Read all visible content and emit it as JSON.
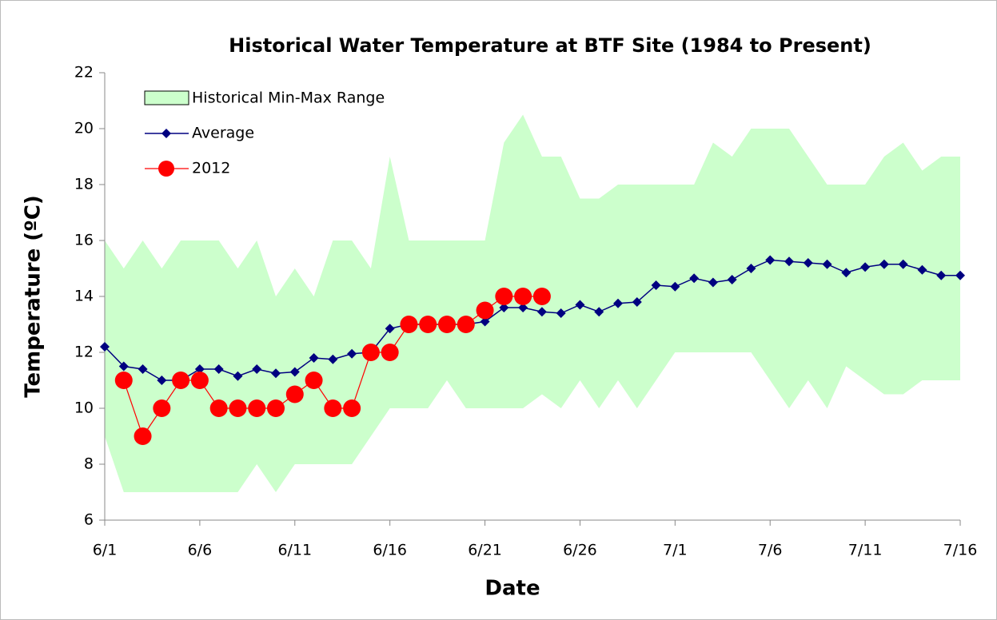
{
  "chart_data": {
    "type": "line",
    "title": "Historical Water Temperature at BTF Site (1984 to Present)",
    "x_label": "Date",
    "y_label": "Temperature (ºC)",
    "categories": [
      "6/1",
      null,
      null,
      null,
      null,
      "6/6",
      null,
      null,
      null,
      null,
      "6/11",
      null,
      null,
      null,
      null,
      "6/16",
      null,
      null,
      null,
      null,
      "6/21",
      null,
      null,
      null,
      null,
      "6/26",
      null,
      null,
      null,
      null,
      "7/1",
      null,
      null,
      null,
      null,
      "7/6",
      null,
      null,
      null,
      null,
      "7/11",
      null,
      null,
      null,
      null,
      "7/16"
    ],
    "ylim": [
      6,
      22
    ],
    "yticks": [
      6,
      8,
      10,
      12,
      14,
      16,
      18,
      20,
      22
    ],
    "legend": "top-left",
    "series": [
      {
        "name": "Historical Min-Max Range",
        "color": "#ccffcc",
        "low": [
          9,
          7,
          7,
          7,
          7,
          7,
          7,
          7,
          8,
          7,
          8,
          8,
          8,
          8,
          9,
          10,
          10,
          10,
          11,
          10,
          10,
          10,
          10,
          10.5,
          10,
          11,
          10,
          11,
          10,
          11,
          12,
          12,
          12,
          12,
          12,
          11,
          10,
          11,
          10,
          11.5,
          11,
          10.5,
          10.5,
          11,
          11,
          11
        ],
        "high": [
          16,
          15,
          16,
          15,
          16,
          16,
          16,
          15,
          16,
          14,
          15,
          14,
          16,
          16,
          15,
          19,
          16,
          16,
          16,
          16,
          16,
          19.5,
          20.5,
          19,
          19,
          17.5,
          17.5,
          18,
          18,
          18,
          18,
          18,
          19.5,
          19,
          20,
          20,
          20,
          19,
          18,
          18,
          18,
          19,
          19.5,
          18.5,
          19,
          19
        ]
      },
      {
        "name": "Average",
        "color": "#000080",
        "values": [
          12.2,
          11.5,
          11.4,
          11.0,
          11.0,
          11.4,
          11.4,
          11.15,
          11.4,
          11.25,
          11.3,
          11.8,
          11.75,
          11.95,
          12.0,
          12.85,
          13.0,
          13.0,
          13.0,
          13.0,
          13.1,
          13.6,
          13.6,
          13.45,
          13.4,
          13.7,
          13.45,
          13.75,
          13.8,
          14.4,
          14.35,
          14.65,
          14.5,
          14.6,
          15.0,
          15.3,
          15.25,
          15.2,
          15.15,
          14.85,
          15.05,
          15.15,
          15.15,
          14.95,
          14.75,
          14.75
        ]
      },
      {
        "name": "2012",
        "color": "#ff0000",
        "values": [
          null,
          11,
          9,
          10,
          11,
          11,
          10,
          10,
          10,
          10,
          10.5,
          11,
          10,
          10,
          12,
          12,
          13,
          13,
          13,
          13,
          13.5,
          14,
          14,
          14,
          null,
          null,
          null,
          null,
          null,
          null,
          null,
          null,
          null,
          null,
          null,
          null,
          null,
          null,
          null,
          null,
          null,
          null,
          null,
          null,
          null,
          null
        ]
      }
    ]
  }
}
